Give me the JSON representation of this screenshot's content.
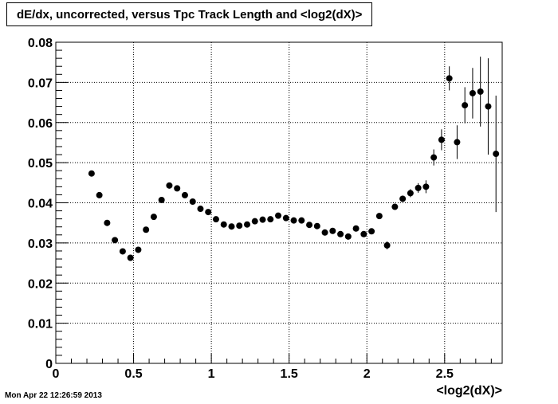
{
  "timestamp": "Mon Apr 22 12:26:59 2013",
  "chart_data": {
    "type": "scatter",
    "title": "dE/dx, uncorrected, versus Tpc Track Length and <log2(dX)>",
    "xlabel": "<log2(dX)>",
    "ylabel": "",
    "xlim": [
      0,
      2.87
    ],
    "ylim": [
      0,
      0.08
    ],
    "grid": true,
    "x_ticks": [
      0,
      0.5,
      1,
      1.5,
      2,
      2.5
    ],
    "x_tick_labels": [
      "0",
      "0.5",
      "1",
      "1.5",
      "2",
      "2.5"
    ],
    "y_ticks": [
      0,
      0.01,
      0.02,
      0.03,
      0.04,
      0.05,
      0.06,
      0.07,
      0.08
    ],
    "y_tick_labels": [
      "0",
      "0.01",
      "0.02",
      "0.03",
      "0.04",
      "0.05",
      "0.06",
      "0.07",
      "0.08"
    ],
    "series": [
      {
        "x": [
          0.23,
          0.28,
          0.33,
          0.38,
          0.43,
          0.48,
          0.53,
          0.58,
          0.63,
          0.68,
          0.73,
          0.78,
          0.83,
          0.88,
          0.93,
          0.98,
          1.03,
          1.08,
          1.13,
          1.18,
          1.23,
          1.28,
          1.33,
          1.38,
          1.43,
          1.48,
          1.53,
          1.58,
          1.63,
          1.68,
          1.73,
          1.78,
          1.83,
          1.88,
          1.93,
          1.98,
          2.03,
          2.08,
          2.13,
          2.18,
          2.23,
          2.28,
          2.33,
          2.38,
          2.43,
          2.48,
          2.53,
          2.58,
          2.63,
          2.68,
          2.73,
          2.78,
          2.83
        ],
        "y": [
          0.0473,
          0.0419,
          0.035,
          0.0307,
          0.0279,
          0.0263,
          0.0283,
          0.0333,
          0.0365,
          0.0407,
          0.0443,
          0.0436,
          0.0419,
          0.0403,
          0.0385,
          0.0377,
          0.0359,
          0.0346,
          0.0341,
          0.0343,
          0.0346,
          0.0354,
          0.0358,
          0.0359,
          0.0368,
          0.0362,
          0.0356,
          0.0356,
          0.0345,
          0.0342,
          0.0326,
          0.033,
          0.0322,
          0.0316,
          0.0336,
          0.0322,
          0.0329,
          0.0367,
          0.0294,
          0.039,
          0.041,
          0.0424,
          0.0437,
          0.044,
          0.0513,
          0.0557,
          0.071,
          0.0551,
          0.0643,
          0.0673,
          0.0677,
          0.064,
          0.0522
        ],
        "yerr": [
          0.0007,
          0.0005,
          0.0004,
          0.0004,
          0.0003,
          0.0003,
          0.0003,
          0.0003,
          0.0003,
          0.0003,
          0.0003,
          0.0003,
          0.0003,
          0.0003,
          0.0003,
          0.0003,
          0.0003,
          0.0003,
          0.0003,
          0.0003,
          0.0003,
          0.0003,
          0.0003,
          0.0003,
          0.0003,
          0.0003,
          0.0003,
          0.0003,
          0.0003,
          0.0003,
          0.0003,
          0.0003,
          0.0003,
          0.0003,
          0.0004,
          0.0004,
          0.0005,
          0.0006,
          0.001,
          0.0007,
          0.0008,
          0.001,
          0.0012,
          0.0016,
          0.002,
          0.0026,
          0.003,
          0.0042,
          0.0045,
          0.0063,
          0.0087,
          0.012,
          0.0145
        ]
      }
    ]
  }
}
